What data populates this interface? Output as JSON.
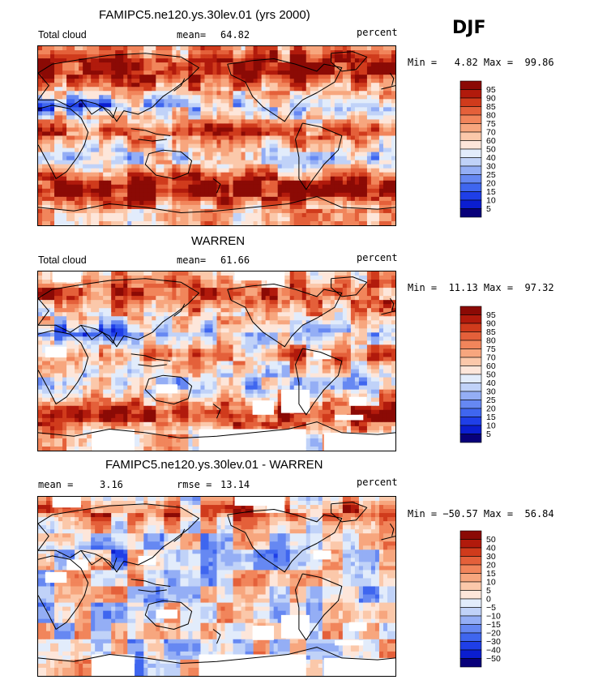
{
  "season": "DJF",
  "colors": {
    "scale": [
      "#08007a",
      "#0b1ed0",
      "#1f3fe8",
      "#3f66ef",
      "#6688f2",
      "#94aef5",
      "#c0d2f8",
      "#e2ecfb",
      "#fde6da",
      "#fbc8aa",
      "#f7a67e",
      "#f1855b",
      "#e4603a",
      "#d03b1c",
      "#b11a0c",
      "#8b0a05"
    ],
    "coast": "#000000",
    "missing": "#ffffff"
  },
  "panels": [
    {
      "id": "model",
      "title": "FAMIPC5.ne120.ys.30lev.01 (yrs 2000)",
      "left_label": "Total cloud",
      "mid_label": "mean=",
      "mid_value": "64.82",
      "right_label": "percent",
      "minmax": "Min =   4.82 Max =  99.86",
      "colorbar_labels": [
        "95",
        "90",
        "85",
        "80",
        "75",
        "70",
        "60",
        "50",
        "40",
        "30",
        "25",
        "20",
        "15",
        "10",
        "5"
      ],
      "field": {
        "mean_level": 0.78,
        "wetness": 1.0,
        "missing": []
      }
    },
    {
      "id": "obs",
      "title": "WARREN",
      "left_label": "Total cloud",
      "mid_label": "mean=",
      "mid_value": "61.66",
      "right_label": "percent",
      "minmax": "Min =  11.13 Max =  97.32",
      "colorbar_labels": [
        "95",
        "90",
        "85",
        "80",
        "75",
        "70",
        "60",
        "50",
        "40",
        "30",
        "25",
        "20",
        "15",
        "10",
        "5"
      ],
      "field": {
        "mean_level": 0.62,
        "wetness": 0.75,
        "missing": [
          [
            0.04,
            0.0,
            0.08,
            0.06
          ],
          [
            0.55,
            0.0,
            0.12,
            0.05
          ],
          [
            0.64,
            0.0,
            0.05,
            0.09
          ],
          [
            0.77,
            0.44,
            0.05,
            0.05
          ],
          [
            0.87,
            0.7,
            0.05,
            0.05
          ],
          [
            0.33,
            0.63,
            0.06,
            0.05
          ],
          [
            0.68,
            0.66,
            0.08,
            0.13
          ],
          [
            0.6,
            0.72,
            0.06,
            0.08
          ],
          [
            0.83,
            0.8,
            0.08,
            0.03
          ],
          [
            0.15,
            0.88,
            0.12,
            0.12
          ],
          [
            0.45,
            0.88,
            0.3,
            0.12
          ],
          [
            0.8,
            0.9,
            0.2,
            0.1
          ],
          [
            0.02,
            0.42,
            0.06,
            0.06
          ]
        ]
      }
    },
    {
      "id": "diff",
      "title": "FAMIPC5.ne120.ys.30lev.01 - WARREN",
      "left_label": "mean =",
      "left_value": "3.16",
      "mid_label": "rmse =",
      "mid_value": "13.14",
      "right_label": "percent",
      "minmax": "Min = −50.57 Max =  56.84",
      "colorbar_labels": [
        "50",
        "40",
        "30",
        "20",
        "15",
        "10",
        "5",
        "0",
        "−5",
        "−10",
        "−15",
        "−20",
        "−30",
        "−40",
        "−50"
      ],
      "field": {
        "mean_level": 0.5,
        "wetness": 0.4,
        "missing": [
          [
            0.04,
            0.0,
            0.08,
            0.06
          ],
          [
            0.55,
            0.0,
            0.12,
            0.05
          ],
          [
            0.64,
            0.0,
            0.05,
            0.09
          ],
          [
            0.77,
            0.3,
            0.05,
            0.05
          ],
          [
            0.87,
            0.7,
            0.05,
            0.05
          ],
          [
            0.33,
            0.63,
            0.06,
            0.05
          ],
          [
            0.68,
            0.66,
            0.08,
            0.13
          ],
          [
            0.6,
            0.72,
            0.06,
            0.08
          ],
          [
            0.83,
            0.8,
            0.08,
            0.03
          ],
          [
            0.15,
            0.88,
            0.12,
            0.12
          ],
          [
            0.45,
            0.88,
            0.3,
            0.12
          ],
          [
            0.8,
            0.9,
            0.2,
            0.1
          ],
          [
            0.02,
            0.42,
            0.06,
            0.06
          ],
          [
            0.28,
            0.33,
            0.05,
            0.05
          ],
          [
            0.08,
            0.35,
            0.06,
            0.06
          ]
        ]
      }
    }
  ]
}
